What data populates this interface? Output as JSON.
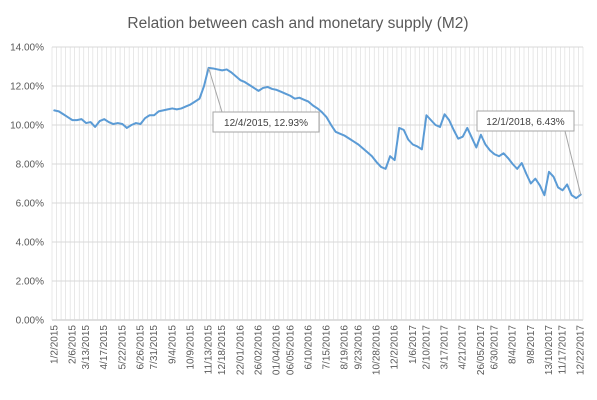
{
  "chart_data": {
    "type": "line",
    "title": "Relation between cash and monetary supply (M2)",
    "xlabel": "",
    "ylabel": "",
    "ylim": [
      0,
      14
    ],
    "y_ticks": [
      0,
      2,
      4,
      6,
      8,
      10,
      12,
      14
    ],
    "y_tick_labels": [
      "0.00%",
      "2.00%",
      "4.00%",
      "6.00%",
      "8.00%",
      "10.00%",
      "12.00%",
      "14.00%"
    ],
    "grid": true,
    "legend": "none",
    "x_tick_labels": [
      "1/2/2015",
      "2/6/2015",
      "3/13/2015",
      "4/17/2015",
      "5/22/2015",
      "6/26/2015",
      "7/31/2015",
      "9/4/2015",
      "10/9/2015",
      "11/13/2015",
      "12/18/2015",
      "22/01/2016",
      "26/02/2016",
      "01/04/2016",
      "06/05/2016",
      "6/10/2016",
      "7/15/2016",
      "8/19/2016",
      "9/23/2016",
      "10/28/2016",
      "12/2/2016",
      "1/6/2017",
      "2/10/2017",
      "3/17/2017",
      "4/21/2017",
      "26/05/2017",
      "6/30/2017",
      "8/4/2017",
      "9/8/2017",
      "13/10/2017",
      "11/17/2017",
      "12/22/2017"
    ],
    "series": [
      {
        "color": "#5b9bd5",
        "values": [
          10.75,
          10.7,
          10.55,
          10.4,
          10.25,
          10.25,
          10.3,
          10.1,
          10.15,
          9.9,
          10.2,
          10.3,
          10.15,
          10.05,
          10.1,
          10.05,
          9.85,
          10.0,
          10.1,
          10.05,
          10.35,
          10.5,
          10.5,
          10.7,
          10.75,
          10.8,
          10.85,
          10.8,
          10.85,
          10.95,
          11.05,
          11.2,
          11.35,
          12.0,
          12.93,
          12.9,
          12.85,
          12.8,
          12.85,
          12.7,
          12.5,
          12.3,
          12.2,
          12.05,
          11.9,
          11.75,
          11.9,
          11.95,
          11.85,
          11.8,
          11.7,
          11.6,
          11.5,
          11.35,
          11.4,
          11.3,
          11.2,
          11.0,
          10.85,
          10.65,
          10.4,
          10.0,
          9.65,
          9.55,
          9.45,
          9.3,
          9.15,
          9.0,
          8.8,
          8.6,
          8.4,
          8.1,
          7.85,
          7.75,
          8.4,
          8.2,
          9.85,
          9.75,
          9.25,
          9.0,
          8.9,
          8.75,
          10.5,
          10.25,
          10.0,
          9.9,
          10.55,
          10.25,
          9.75,
          9.3,
          9.4,
          9.85,
          9.35,
          8.85,
          9.5,
          9.0,
          8.7,
          8.5,
          8.4,
          8.55,
          8.3,
          8.0,
          7.75,
          8.05,
          7.5,
          7.0,
          7.25,
          6.9,
          6.4,
          7.6,
          7.35,
          6.8,
          6.65,
          6.95,
          6.4,
          6.25,
          6.43
        ]
      }
    ],
    "annotations": [
      {
        "label": "12/4/2015, 12.93%",
        "index": 34,
        "value": 12.93
      },
      {
        "label": "12/1/2018, 6.43%",
        "index": 116,
        "value": 6.43
      }
    ]
  }
}
